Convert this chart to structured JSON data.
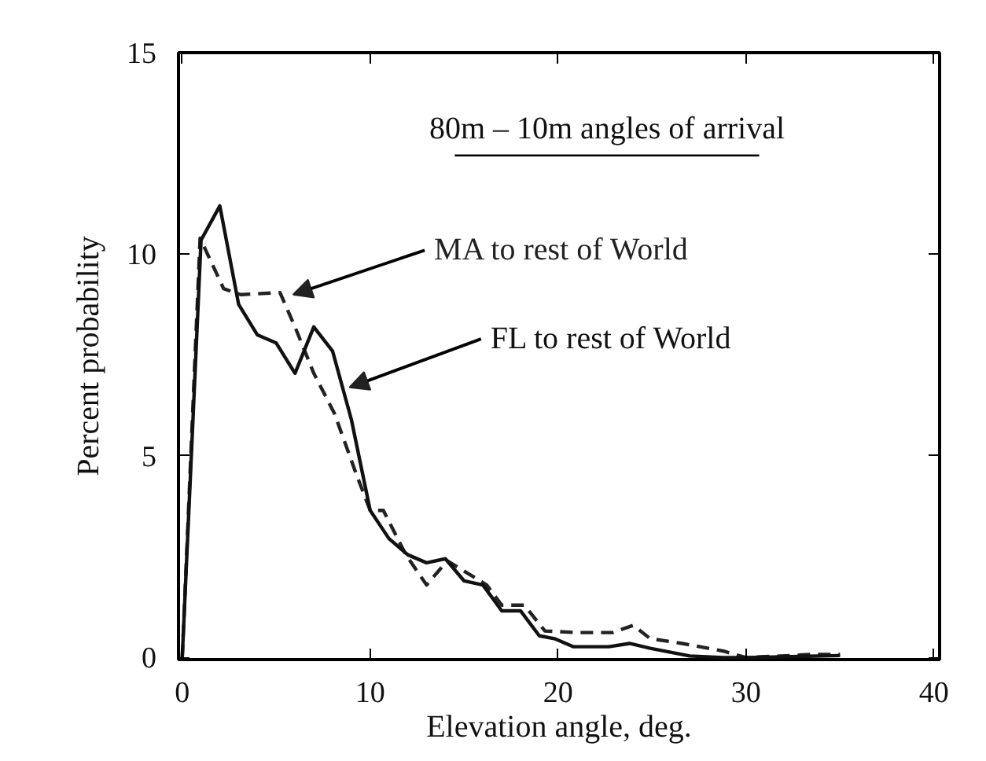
{
  "chart_data": {
    "type": "line",
    "title": "80m – 10m angles of arrival",
    "xlabel": "Elevation angle, deg.",
    "ylabel": "Percent probability",
    "xlim": [
      -0.2,
      40.3
    ],
    "ylim": [
      -0.05,
      15
    ],
    "xticks": [
      0,
      10,
      20,
      30,
      40
    ],
    "yticks": [
      0,
      5,
      10,
      15
    ],
    "grid": false,
    "series": [
      {
        "name": "MA to rest of World",
        "color": "#222222",
        "line_style": "dashed",
        "x": [
          0,
          0.95,
          2.2,
          3.1,
          5.2,
          6,
          7,
          8.1,
          9.3,
          10,
          10.7,
          11.9,
          13,
          14.1,
          16.2,
          17,
          18.2,
          19.3,
          21,
          22.9,
          24,
          24.9,
          26.6,
          28.8,
          30,
          32.3,
          33.6,
          35
        ],
        "values": [
          0,
          10.4,
          9.15,
          9.0,
          9.05,
          8.2,
          7.05,
          6.05,
          4.5,
          3.65,
          3.65,
          2.55,
          1.8,
          2.4,
          1.8,
          1.3,
          1.3,
          0.66,
          0.62,
          0.62,
          0.8,
          0.47,
          0.35,
          0.16,
          0,
          0.05,
          0.08,
          0.08
        ]
      },
      {
        "name": "FL to rest of World",
        "color": "#111111",
        "line_style": "solid",
        "x": [
          0,
          1,
          2,
          3,
          4,
          5,
          6,
          7,
          8,
          9,
          10,
          11,
          12,
          13,
          14,
          15,
          16,
          17,
          18,
          19,
          19.8,
          20.8,
          22.7,
          23.8,
          24.9,
          27,
          28.8,
          30,
          35
        ],
        "values": [
          0,
          10.35,
          11.2,
          8.76,
          8.0,
          7.8,
          7.05,
          8.2,
          7.6,
          5.9,
          3.65,
          2.95,
          2.55,
          2.35,
          2.45,
          1.9,
          1.8,
          1.16,
          1.16,
          0.54,
          0.47,
          0.27,
          0.27,
          0.35,
          0.23,
          0.04,
          0,
          0,
          0.05
        ]
      }
    ]
  }
}
